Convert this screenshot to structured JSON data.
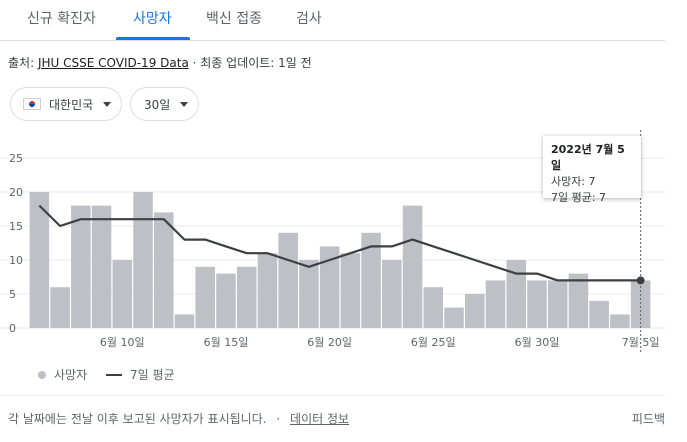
{
  "tabs": [
    {
      "label": "신규 확진자"
    },
    {
      "label": "사망자"
    },
    {
      "label": "백신 접종"
    },
    {
      "label": "검사"
    }
  ],
  "source": {
    "prefix": "출처:",
    "link": "JHU CSSE COVID-19 Data",
    "updated": "· 최종 업데이트: 1일 전"
  },
  "filters": {
    "region": "대한민국",
    "range": "30일"
  },
  "tooltip": {
    "date": "2022년 7월 5일",
    "deaths": "사망자: 7",
    "avg": "7일 평균: 7"
  },
  "legend": {
    "bars": "사망자",
    "line": "7일 평균"
  },
  "footer": {
    "note": "각 날짜에는 전날 이후 보고된 사망자가 표시됩니다.",
    "sep": "·",
    "link": "데이터 정보",
    "feedback": "피드백"
  },
  "colors": {
    "accent": "#1a73e8",
    "bar": "#bdc1c6",
    "line": "#3c4043",
    "grid": "#e8eaed"
  },
  "chart_data": {
    "type": "bar",
    "dates": [
      "6/6",
      "6/7",
      "6/8",
      "6/9",
      "6/10",
      "6/11",
      "6/12",
      "6/13",
      "6/14",
      "6/15",
      "6/16",
      "6/17",
      "6/18",
      "6/19",
      "6/20",
      "6/21",
      "6/22",
      "6/23",
      "6/24",
      "6/25",
      "6/26",
      "6/27",
      "6/28",
      "6/29",
      "6/30",
      "7/1",
      "7/2",
      "7/3",
      "7/4",
      "7/5"
    ],
    "series": [
      {
        "name": "사망자",
        "type": "bar",
        "values": [
          20,
          6,
          18,
          18,
          10,
          20,
          17,
          2,
          9,
          8,
          9,
          11,
          14,
          10,
          12,
          11,
          14,
          10,
          18,
          6,
          3,
          5,
          7,
          10,
          7,
          7,
          8,
          4,
          2,
          7
        ]
      },
      {
        "name": "7일 평균",
        "type": "line",
        "values": [
          18,
          15,
          16,
          16,
          16,
          16,
          16,
          13,
          13,
          12,
          11,
          11,
          10,
          9,
          10,
          11,
          12,
          12,
          13,
          12,
          11,
          10,
          9,
          8,
          8,
          7,
          7,
          7,
          7,
          7
        ]
      }
    ],
    "x_ticks": [
      {
        "label": "6월 10일",
        "index": 4
      },
      {
        "label": "6월 15일",
        "index": 9
      },
      {
        "label": "6월 20일",
        "index": 14
      },
      {
        "label": "6월 25일",
        "index": 19
      },
      {
        "label": "6월 30일",
        "index": 24
      },
      {
        "label": "7월 5일",
        "index": 29
      }
    ],
    "y_ticks": [
      0,
      5,
      10,
      15,
      20,
      25
    ],
    "ylim": [
      0,
      25
    ],
    "grid": true,
    "highlight_index": 29
  }
}
